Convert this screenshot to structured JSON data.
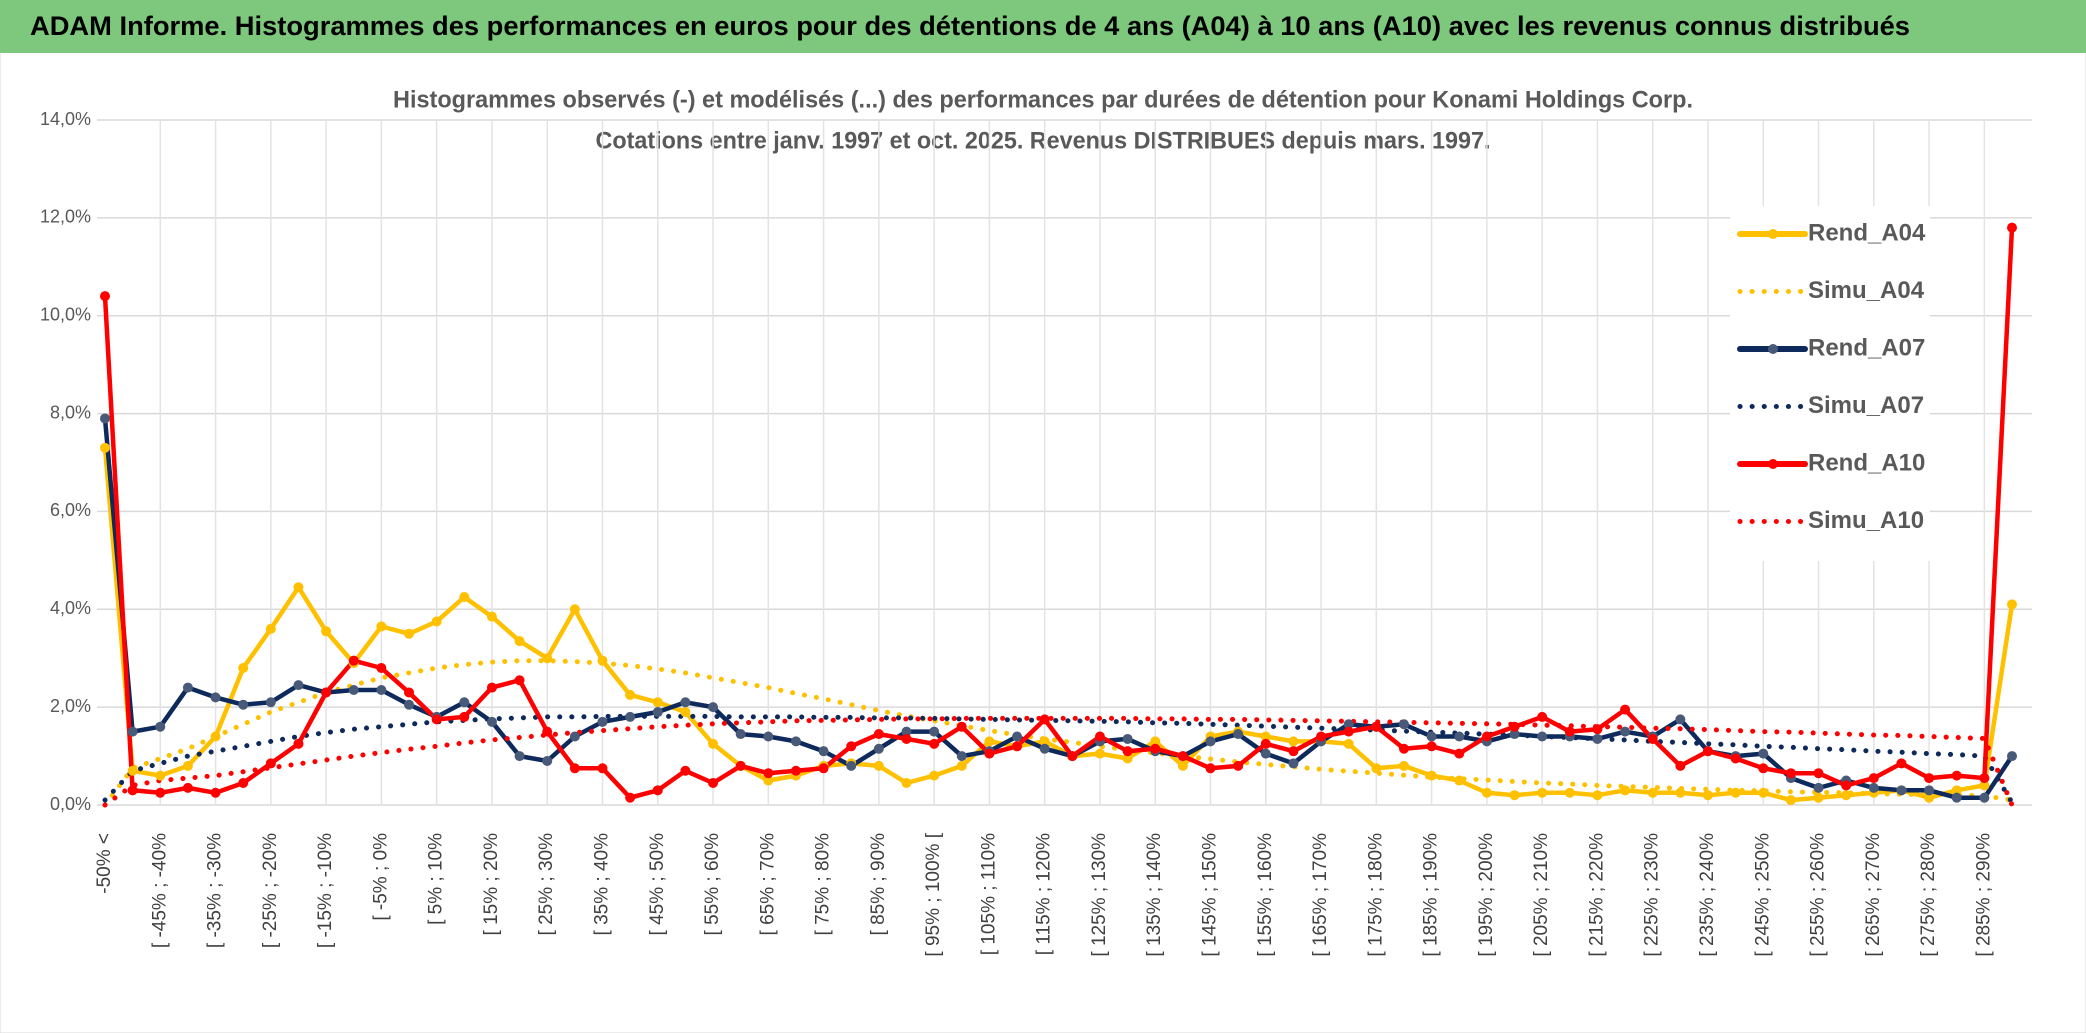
{
  "header": {
    "title": "ADAM Informe. Histogrammes des performances en euros pour des détentions de 4 ans (A04) à 10 ans (A10) avec les revenus connus distribués"
  },
  "chart_data": {
    "type": "line",
    "title": "Histogrammes observés (-) et modélisés (...) des performances par durées de détention pour Konami Holdings Corp.",
    "subtitle": "Cotations entre janv. 1997 et oct. 2025. Revenus DISTRIBUES depuis mars. 1997.",
    "categories": [
      "-50% <",
      null,
      "[ -45% ; -40%",
      null,
      "[ -35% ; -30%",
      null,
      "[ -25% ; -20%",
      null,
      "[ -15% ; -10%",
      null,
      "[ -5% ; 0%",
      null,
      "[ 5% ; 10%",
      null,
      "[ 15% ; 20%",
      null,
      "[ 25% ; 30%",
      null,
      "[ 35% ; 40%",
      null,
      "[ 45% ; 50%",
      null,
      "[ 55% ; 60%",
      null,
      "[ 65% ; 70%",
      null,
      "[ 75% ; 80%",
      null,
      "[ 85% ; 90%",
      null,
      "[ 95% ; 100% [",
      null,
      "[ 105% ; 110%",
      null,
      "[ 115% ; 120%",
      null,
      "[ 125% ; 130%",
      null,
      "[ 135% ; 140%",
      null,
      "[ 145% ; 150%",
      null,
      "[ 155% ; 160%",
      null,
      "[ 165% ; 170%",
      null,
      "[ 175% ; 180%",
      null,
      "[ 185% ; 190%",
      null,
      "[ 195% ; 200%",
      null,
      "[ 205% ; 210%",
      null,
      "[ 215% ; 220%",
      null,
      "[ 225% ; 230%",
      null,
      "[ 235% ; 240%",
      null,
      "[ 245% ; 250%",
      null,
      "[ 255% ; 260%",
      null,
      "[ 265% ; 270%",
      null,
      "[ 275% ; 280%",
      null,
      "[ 285% ; 290%",
      null
    ],
    "ylim": [
      0,
      14
    ],
    "yticks": [
      {
        "value": 0,
        "label": "0,0%"
      },
      {
        "value": 2,
        "label": "2,0%"
      },
      {
        "value": 4,
        "label": "4,0%"
      },
      {
        "value": 6,
        "label": "6,0%"
      },
      {
        "value": 8,
        "label": "8,0%"
      },
      {
        "value": 10,
        "label": "10,0%"
      },
      {
        "value": 12,
        "label": "12,0%"
      },
      {
        "value": 14,
        "label": "14,0%"
      }
    ],
    "grid": true,
    "legend": "right",
    "series": [
      {
        "name": "Rend_A04",
        "color": "#ffc000",
        "dotted": false,
        "markers": true,
        "values": [
          7.3,
          0.7,
          0.6,
          0.8,
          1.4,
          2.8,
          3.6,
          4.45,
          3.55,
          2.9,
          3.65,
          3.5,
          3.75,
          4.25,
          3.85,
          3.35,
          3.0,
          4.0,
          2.95,
          2.25,
          2.1,
          1.9,
          1.25,
          0.8,
          0.5,
          0.6,
          0.8,
          0.85,
          0.8,
          0.45,
          0.6,
          0.8,
          1.3,
          1.2,
          1.3,
          1.0,
          1.05,
          0.95,
          1.3,
          0.8,
          1.4,
          1.5,
          1.4,
          1.3,
          1.3,
          1.25,
          0.75,
          0.8,
          0.6,
          0.5,
          0.25,
          0.2,
          0.25,
          0.25,
          0.2,
          0.3,
          0.25,
          0.25,
          0.2,
          0.25,
          0.25,
          0.1,
          0.15,
          0.2,
          0.25,
          0.3,
          0.15,
          0.3,
          0.4,
          4.1
        ]
      },
      {
        "name": "Simu_A04",
        "color": "#ffc000",
        "dotted": true,
        "markers": false,
        "values": [
          0,
          0.75,
          0.95,
          1.15,
          1.4,
          1.65,
          1.9,
          2.1,
          2.3,
          2.45,
          2.6,
          2.7,
          2.8,
          2.87,
          2.92,
          2.95,
          2.95,
          2.93,
          2.9,
          2.85,
          2.78,
          2.7,
          2.6,
          2.5,
          2.4,
          2.28,
          2.17,
          2.05,
          1.93,
          1.82,
          1.72,
          1.62,
          1.52,
          1.43,
          1.35,
          1.28,
          1.2,
          1.13,
          1.06,
          1.0,
          0.94,
          0.88,
          0.83,
          0.78,
          0.73,
          0.69,
          0.65,
          0.61,
          0.57,
          0.54,
          0.51,
          0.48,
          0.45,
          0.43,
          0.4,
          0.38,
          0.36,
          0.34,
          0.32,
          0.3,
          0.29,
          0.27,
          0.26,
          0.25,
          0.23,
          0.22,
          0.21,
          0.2,
          0.19,
          0.1
        ]
      },
      {
        "name": "Rend_A07",
        "color": "#0e2a5c",
        "dotted": false,
        "markers": true,
        "values": [
          7.9,
          1.5,
          1.6,
          2.4,
          2.2,
          2.05,
          2.1,
          2.45,
          2.3,
          2.35,
          2.35,
          2.05,
          1.8,
          2.1,
          1.7,
          1.0,
          0.9,
          1.4,
          1.7,
          1.8,
          1.9,
          2.1,
          2.0,
          1.45,
          1.4,
          1.3,
          1.1,
          0.8,
          1.15,
          1.5,
          1.5,
          1.0,
          1.1,
          1.4,
          1.15,
          1.0,
          1.3,
          1.35,
          1.1,
          1.0,
          1.3,
          1.45,
          1.05,
          0.85,
          1.3,
          1.65,
          1.6,
          1.65,
          1.4,
          1.4,
          1.3,
          1.45,
          1.4,
          1.4,
          1.35,
          1.5,
          1.4,
          1.75,
          1.1,
          1.0,
          1.05,
          0.55,
          0.35,
          0.5,
          0.35,
          0.3,
          0.3,
          0.15,
          0.15,
          1.0
        ]
      },
      {
        "name": "Simu_A07",
        "color": "#0e2a5c",
        "dotted": true,
        "markers": false,
        "values": [
          0.1,
          0.7,
          0.85,
          1.0,
          1.1,
          1.2,
          1.3,
          1.4,
          1.48,
          1.55,
          1.6,
          1.65,
          1.7,
          1.73,
          1.76,
          1.78,
          1.8,
          1.8,
          1.81,
          1.81,
          1.81,
          1.81,
          1.81,
          1.8,
          1.8,
          1.8,
          1.79,
          1.79,
          1.78,
          1.78,
          1.77,
          1.76,
          1.75,
          1.74,
          1.73,
          1.72,
          1.71,
          1.7,
          1.68,
          1.67,
          1.65,
          1.63,
          1.61,
          1.59,
          1.57,
          1.55,
          1.53,
          1.51,
          1.49,
          1.47,
          1.45,
          1.43,
          1.4,
          1.38,
          1.35,
          1.33,
          1.3,
          1.28,
          1.25,
          1.23,
          1.2,
          1.18,
          1.15,
          1.13,
          1.1,
          1.08,
          1.05,
          1.03,
          1.0,
          0.05
        ]
      },
      {
        "name": "Rend_A10",
        "color": "#ff0000",
        "dotted": false,
        "markers": true,
        "values": [
          10.4,
          0.3,
          0.25,
          0.35,
          0.25,
          0.45,
          0.85,
          1.25,
          2.3,
          2.95,
          2.8,
          2.3,
          1.75,
          1.8,
          2.4,
          2.55,
          1.5,
          0.75,
          0.75,
          0.15,
          0.3,
          0.7,
          0.45,
          0.8,
          0.65,
          0.7,
          0.75,
          1.2,
          1.45,
          1.35,
          1.25,
          1.6,
          1.05,
          1.2,
          1.75,
          1.0,
          1.4,
          1.1,
          1.15,
          1.0,
          0.75,
          0.8,
          1.25,
          1.1,
          1.4,
          1.5,
          1.6,
          1.15,
          1.2,
          1.05,
          1.4,
          1.6,
          1.8,
          1.5,
          1.55,
          1.95,
          1.35,
          0.8,
          1.1,
          0.95,
          0.75,
          0.65,
          0.65,
          0.4,
          0.55,
          0.85,
          0.55,
          0.6,
          0.55,
          11.8
        ]
      },
      {
        "name": "Simu_A10",
        "color": "#ff0000",
        "dotted": true,
        "markers": false,
        "values": [
          0,
          0.4,
          0.5,
          0.55,
          0.6,
          0.68,
          0.76,
          0.84,
          0.92,
          1.0,
          1.07,
          1.14,
          1.2,
          1.27,
          1.33,
          1.38,
          1.43,
          1.48,
          1.52,
          1.56,
          1.6,
          1.63,
          1.66,
          1.68,
          1.7,
          1.72,
          1.73,
          1.74,
          1.75,
          1.76,
          1.76,
          1.77,
          1.77,
          1.77,
          1.77,
          1.77,
          1.77,
          1.77,
          1.76,
          1.76,
          1.75,
          1.75,
          1.74,
          1.73,
          1.72,
          1.71,
          1.7,
          1.69,
          1.68,
          1.67,
          1.66,
          1.65,
          1.63,
          1.62,
          1.6,
          1.59,
          1.57,
          1.56,
          1.54,
          1.52,
          1.5,
          1.49,
          1.47,
          1.45,
          1.43,
          1.42,
          1.4,
          1.38,
          1.36,
          0
        ]
      }
    ]
  }
}
